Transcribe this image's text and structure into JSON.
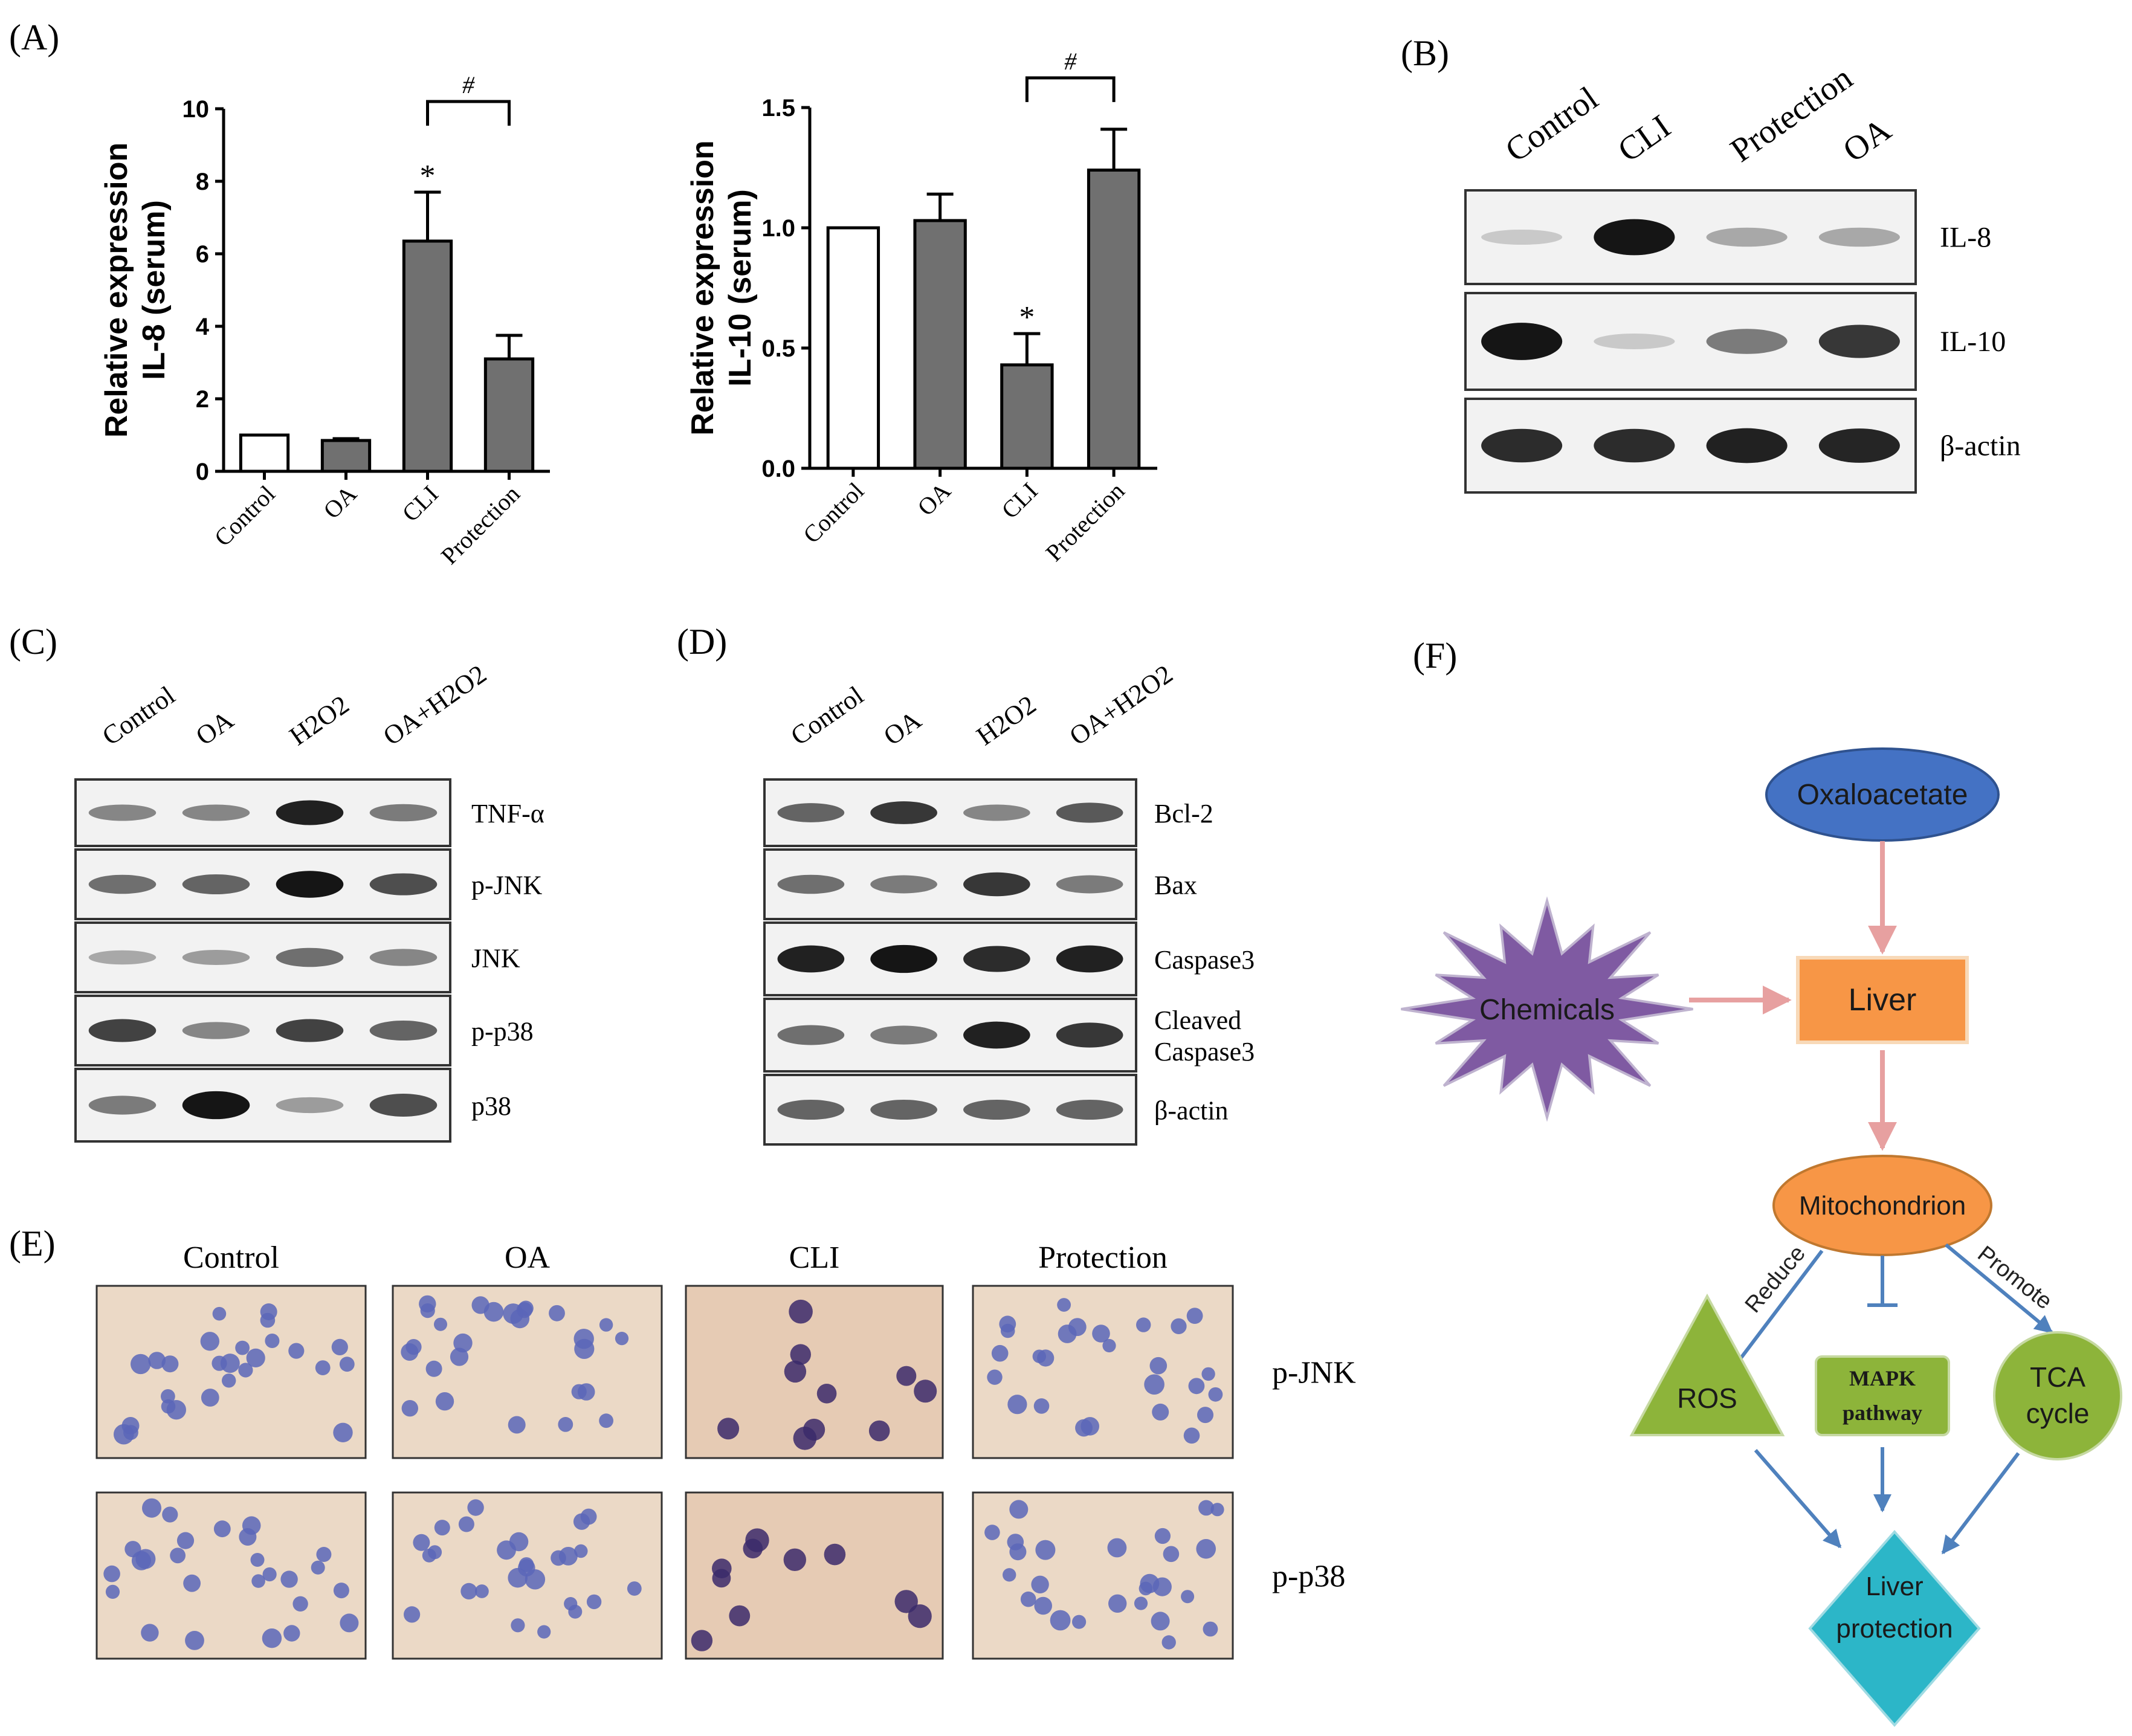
{
  "panels": {
    "a": "(A)",
    "b": "(B)",
    "c": "(C)",
    "d": "(D)",
    "e": "(E)",
    "f": "(F)"
  },
  "chart_data": [
    {
      "type": "bar",
      "ylabel": "Relative expression\nIL-8 (serum)",
      "categories": [
        "Control",
        "OA",
        "CLI",
        "Protection"
      ],
      "values": [
        1.0,
        0.85,
        6.35,
        3.1
      ],
      "errors": [
        0,
        0.05,
        1.35,
        0.65
      ],
      "fills": [
        "#ffffff",
        "#707070",
        "#707070",
        "#707070"
      ],
      "ylim": [
        0,
        10
      ],
      "yticks": [
        "0",
        "2",
        "4",
        "6",
        "8",
        "10"
      ],
      "significance": [
        {
          "category": "CLI",
          "mark": "*"
        }
      ],
      "bracket": {
        "from": "CLI",
        "to": "Protection",
        "mark": "#"
      }
    },
    {
      "type": "bar",
      "ylabel": "Relative expression\nIL-10 (serum)",
      "categories": [
        "Control",
        "OA",
        "CLI",
        "Protection"
      ],
      "values": [
        1.0,
        1.03,
        0.43,
        1.24
      ],
      "errors": [
        0,
        0.11,
        0.13,
        0.17
      ],
      "fills": [
        "#ffffff",
        "#707070",
        "#707070",
        "#707070"
      ],
      "ylim": [
        0,
        1.5
      ],
      "yticks": [
        "0.0",
        "0.5",
        "1.0",
        "1.5"
      ],
      "significance": [
        {
          "category": "CLI",
          "mark": "*"
        }
      ],
      "bracket": {
        "from": "CLI",
        "to": "Protection",
        "mark": "#"
      }
    }
  ],
  "blotB": {
    "lanes": [
      "Control",
      "CLI",
      "Protection",
      "OA"
    ],
    "rows": [
      {
        "label": "IL-8",
        "intensity": [
          0.15,
          0.95,
          0.3,
          0.3
        ]
      },
      {
        "label": "IL-10",
        "intensity": [
          0.95,
          0.15,
          0.5,
          0.8
        ]
      },
      {
        "label": "β-actin",
        "intensity": [
          0.85,
          0.85,
          0.9,
          0.88
        ]
      }
    ]
  },
  "blotC": {
    "lanes": [
      "Control",
      "OA",
      "H2O2",
      "OA+H2O2"
    ],
    "rows": [
      {
        "label": "TNF-α",
        "intensity": [
          0.45,
          0.45,
          0.9,
          0.5
        ]
      },
      {
        "label": "p-JNK",
        "intensity": [
          0.55,
          0.6,
          0.95,
          0.7
        ]
      },
      {
        "label": "JNK",
        "intensity": [
          0.3,
          0.35,
          0.55,
          0.45
        ]
      },
      {
        "label": "p-p38",
        "intensity": [
          0.75,
          0.45,
          0.75,
          0.6
        ]
      },
      {
        "label": "p38",
        "intensity": [
          0.5,
          0.95,
          0.35,
          0.7
        ]
      }
    ]
  },
  "blotD": {
    "lanes": [
      "Control",
      "OA",
      "H2O2",
      "OA+H2O2"
    ],
    "rows": [
      {
        "label": "Bcl-2",
        "intensity": [
          0.6,
          0.8,
          0.45,
          0.65
        ]
      },
      {
        "label": "Bax",
        "intensity": [
          0.55,
          0.5,
          0.8,
          0.5
        ]
      },
      {
        "label": "Caspase3",
        "intensity": [
          0.9,
          0.95,
          0.85,
          0.9
        ]
      },
      {
        "label": "Cleaved\nCaspase3",
        "intensity": [
          0.55,
          0.5,
          0.9,
          0.8
        ]
      },
      {
        "label": "β-actin",
        "intensity": [
          0.6,
          0.6,
          0.6,
          0.6
        ]
      }
    ]
  },
  "histology": {
    "columns": [
      "Control",
      "OA",
      "CLI",
      "Protection"
    ],
    "rows": [
      "p-JNK",
      "p-p38"
    ]
  },
  "diagram": {
    "oxaloacetate": "Oxaloacetate",
    "chemicals": "Chemicals",
    "liver": "Liver",
    "mitochondrion": "Mitochondrion",
    "reduce": "Reduce",
    "promote": "Promote",
    "ros": "ROS",
    "mapk_1": "MAPK",
    "mapk_2": "pathway",
    "tca_1": "TCA",
    "tca_2": "cycle",
    "liver_protection_1": "Liver",
    "liver_protection_2": "protection",
    "colors": {
      "oxaloacetate": "#4472c4",
      "chemicals": "#7f5aa2",
      "liver": "#f79646",
      "mitochondrion": "#f79646",
      "green": "#8db43a",
      "protection": "#2cb6c8",
      "arrow_pink": "#e7a0a0",
      "arrow_blue": "#4f81bd"
    }
  }
}
